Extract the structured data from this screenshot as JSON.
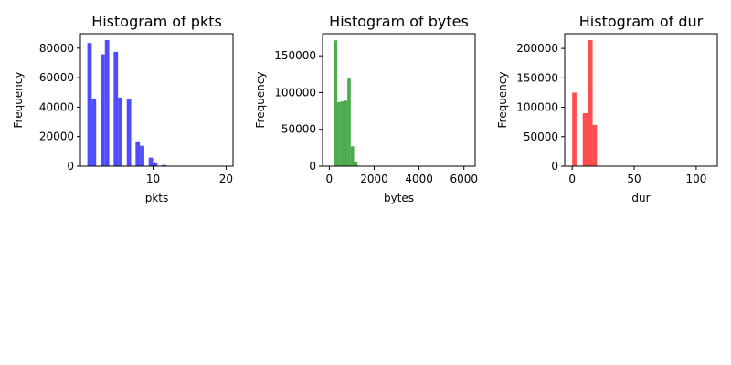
{
  "chart_data": [
    {
      "type": "bar",
      "title": "Histogram of pkts",
      "xlabel": "pkts",
      "ylabel": "Frequency",
      "color": "#4d4dff",
      "xlim": [
        0.05,
        20.95
      ],
      "ylim": [
        0,
        89800
      ],
      "xticks": [
        10,
        20
      ],
      "yticks": [
        0,
        20000,
        40000,
        60000,
        80000
      ],
      "xtick_labels": [
        "10",
        "20"
      ],
      "ytick_labels": [
        "0",
        "20000",
        "40000",
        "60000",
        "80000"
      ],
      "bins": [
        {
          "x0": 1.0,
          "x1": 1.6,
          "value": 83500
        },
        {
          "x0": 1.6,
          "x1": 2.2,
          "value": 45500
        },
        {
          "x0": 2.2,
          "x1": 2.8,
          "value": 0
        },
        {
          "x0": 2.8,
          "x1": 3.4,
          "value": 75800
        },
        {
          "x0": 3.4,
          "x1": 4.0,
          "value": 85500
        },
        {
          "x0": 4.0,
          "x1": 4.6,
          "value": 0
        },
        {
          "x0": 4.6,
          "x1": 5.2,
          "value": 77500
        },
        {
          "x0": 5.2,
          "x1": 5.8,
          "value": 46500
        },
        {
          "x0": 5.8,
          "x1": 6.4,
          "value": 0
        },
        {
          "x0": 6.4,
          "x1": 7.0,
          "value": 45200
        },
        {
          "x0": 7.0,
          "x1": 7.6,
          "value": 0
        },
        {
          "x0": 7.6,
          "x1": 8.2,
          "value": 16200
        },
        {
          "x0": 8.2,
          "x1": 8.8,
          "value": 13800
        },
        {
          "x0": 8.8,
          "x1": 9.4,
          "value": 0
        },
        {
          "x0": 9.4,
          "x1": 10.0,
          "value": 5800
        },
        {
          "x0": 10.0,
          "x1": 10.6,
          "value": 2000
        },
        {
          "x0": 10.6,
          "x1": 11.2,
          "value": 0
        },
        {
          "x0": 11.2,
          "x1": 11.8,
          "value": 800
        },
        {
          "x0": 11.8,
          "x1": 12.4,
          "value": 300
        },
        {
          "x0": 12.4,
          "x1": 13.0,
          "value": 100
        }
      ]
    },
    {
      "type": "bar",
      "title": "Histogram of bytes",
      "xlabel": "bytes",
      "ylabel": "Frequency",
      "color": "#4daa4d",
      "xlim": [
        -300,
        6500
      ],
      "ylim": [
        0,
        180000
      ],
      "xticks": [
        0,
        2000,
        4000,
        6000
      ],
      "yticks": [
        0,
        50000,
        100000,
        150000
      ],
      "xtick_labels": [
        "0",
        "2000",
        "4000",
        "6000"
      ],
      "ytick_labels": [
        "0",
        "50000",
        "100000",
        "150000"
      ],
      "bins": [
        {
          "x0": 0,
          "x1": 205,
          "value": 0
        },
        {
          "x0": 205,
          "x1": 355,
          "value": 171000
        },
        {
          "x0": 355,
          "x1": 505,
          "value": 87000
        },
        {
          "x0": 505,
          "x1": 655,
          "value": 88000
        },
        {
          "x0": 655,
          "x1": 805,
          "value": 89000
        },
        {
          "x0": 805,
          "x1": 955,
          "value": 119000
        },
        {
          "x0": 955,
          "x1": 1105,
          "value": 27000
        },
        {
          "x0": 1105,
          "x1": 1255,
          "value": 5000
        },
        {
          "x0": 1255,
          "x1": 1405,
          "value": 500
        },
        {
          "x0": 1405,
          "x1": 1555,
          "value": 200
        },
        {
          "x0": 1555,
          "x1": 6200,
          "value": 100
        }
      ]
    },
    {
      "type": "bar",
      "title": "Histogram of dur",
      "xlabel": "dur",
      "ylabel": "Frequency",
      "color": "#ff4d4d",
      "xlim": [
        -6,
        117
      ],
      "ylim": [
        0,
        225000
      ],
      "xticks": [
        0,
        50,
        100
      ],
      "yticks": [
        0,
        50000,
        100000,
        150000,
        200000
      ],
      "xtick_labels": [
        "0",
        "50",
        "100"
      ],
      "ytick_labels": [
        "0",
        "50000",
        "100000",
        "150000",
        "200000"
      ],
      "bins": [
        {
          "x0": 0,
          "x1": 3.5,
          "value": 125000
        },
        {
          "x0": 3.5,
          "x1": 8.5,
          "value": 0
        },
        {
          "x0": 8.5,
          "x1": 12.5,
          "value": 90000
        },
        {
          "x0": 12.5,
          "x1": 16.5,
          "value": 214000
        },
        {
          "x0": 16.5,
          "x1": 20.0,
          "value": 70000
        },
        {
          "x0": 20.0,
          "x1": 111.0,
          "value": 100
        }
      ]
    }
  ]
}
